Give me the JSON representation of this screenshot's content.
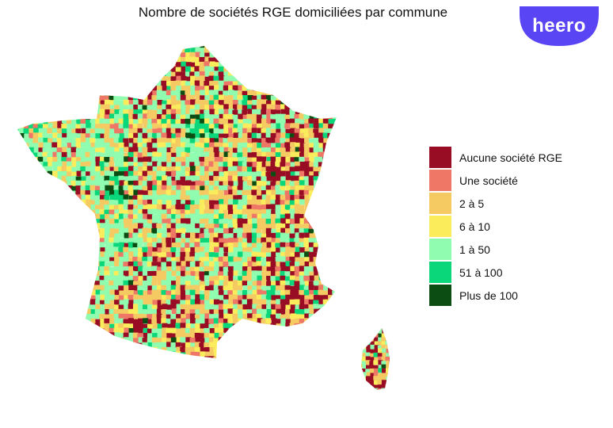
{
  "title": "Nombre de sociétés RGE domiciliées par commune",
  "logo": {
    "text": "heero",
    "color": "#5a45f5"
  },
  "legend": [
    {
      "label": "Aucune société RGE",
      "color": "#990d24"
    },
    {
      "label": "Une société",
      "color": "#ee7766"
    },
    {
      "label": "2 à 5",
      "color": "#f6ca62"
    },
    {
      "label": "6 à 10",
      "color": "#fbec5c"
    },
    {
      "label": "1 à 50",
      "color": "#8ffcb0"
    },
    {
      "label": "51 à 100",
      "color": "#0ad67a"
    },
    {
      "label": "Plus de 100",
      "color": "#0b4d12"
    }
  ],
  "map": {
    "regions": [
      "France métropolitaine",
      "Corse"
    ]
  }
}
